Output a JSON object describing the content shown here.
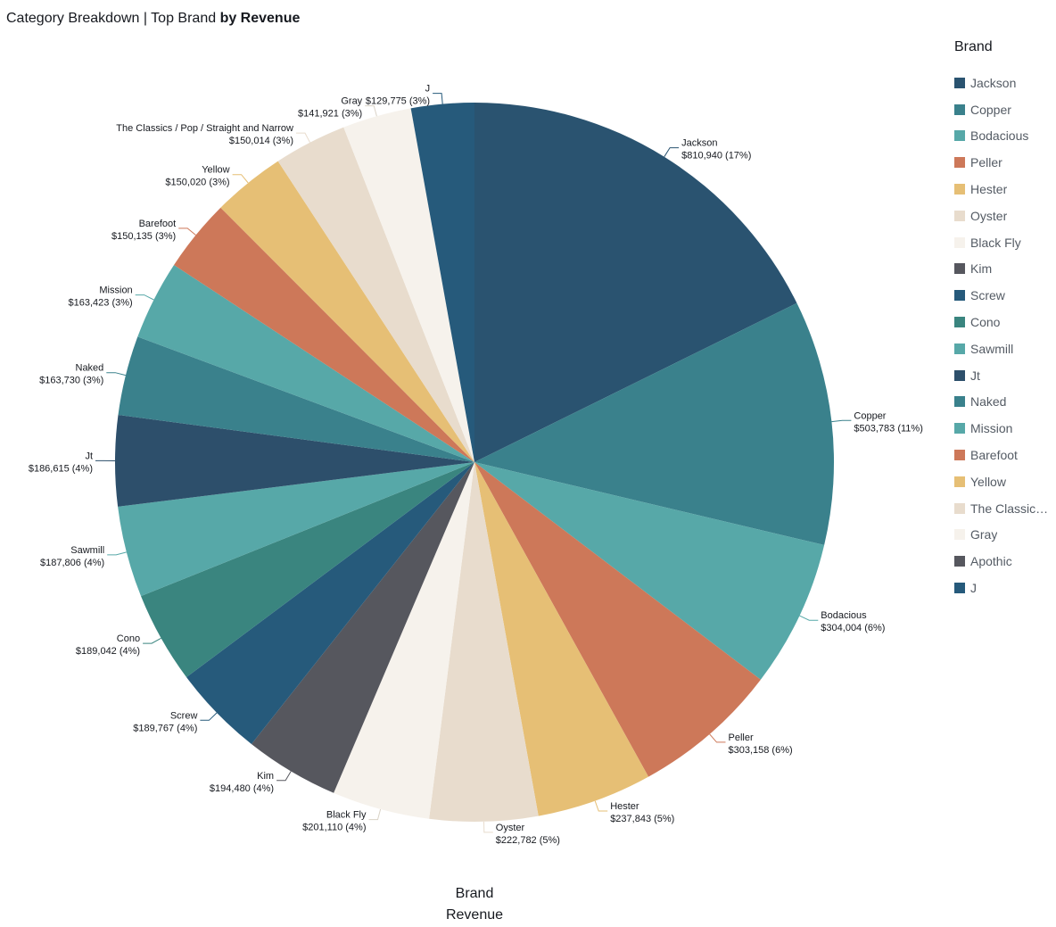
{
  "title": {
    "prefix": "Category Breakdown | Top Brand ",
    "bold": "by Revenue"
  },
  "legend": {
    "title": "Brand"
  },
  "axis_labels": {
    "group": "Brand",
    "value": "Revenue"
  },
  "chart_data": {
    "type": "pie",
    "title": "Category Breakdown | Top Brand by Revenue",
    "group_label": "Brand",
    "value_label": "Revenue",
    "legend_position": "right",
    "slices": [
      {
        "name": "Jackson",
        "legend_name": "Jackson",
        "value": 810940,
        "label": "$810,940 (17%)",
        "color": "#2a5370"
      },
      {
        "name": "Copper",
        "legend_name": "Copper",
        "value": 503783,
        "label": "$503,783 (11%)",
        "color": "#3a818c"
      },
      {
        "name": "Bodacious",
        "legend_name": "Bodacious",
        "value": 304004,
        "label": "$304,004 (6%)",
        "color": "#57a8a8"
      },
      {
        "name": "Peller",
        "legend_name": "Peller",
        "value": 303158,
        "label": "$303,158 (6%)",
        "color": "#cd7859"
      },
      {
        "name": "Hester",
        "legend_name": "Hester",
        "value": 237843,
        "label": "$237,843 (5%)",
        "color": "#e6bf75"
      },
      {
        "name": "Oyster",
        "legend_name": "Oyster",
        "value": 222782,
        "label": "$222,782 (5%)",
        "color": "#e8dccd"
      },
      {
        "name": "Black Fly",
        "legend_name": "Black Fly",
        "value": 201110,
        "label": "$201,110 (4%)",
        "color": "#f6f2ec"
      },
      {
        "name": "Kim",
        "legend_name": "Kim",
        "value": 194480,
        "label": "$194,480 (4%)",
        "color": "#56575e"
      },
      {
        "name": "Screw",
        "legend_name": "Screw",
        "value": 189767,
        "label": "$189,767 (4%)",
        "color": "#265a7b"
      },
      {
        "name": "Cono",
        "legend_name": "Cono",
        "value": 189042,
        "label": "$189,042 (4%)",
        "color": "#3a857f"
      },
      {
        "name": "Sawmill",
        "legend_name": "Sawmill",
        "value": 187806,
        "label": "$187,806 (4%)",
        "color": "#57a8a8"
      },
      {
        "name": "Jt",
        "legend_name": "Jt",
        "value": 186615,
        "label": "$186,615 (4%)",
        "color": "#2d4f6b"
      },
      {
        "name": "Naked",
        "legend_name": "Naked",
        "value": 163730,
        "label": "$163,730 (3%)",
        "color": "#3a818c"
      },
      {
        "name": "Mission",
        "legend_name": "Mission",
        "value": 163423,
        "label": "$163,423 (3%)",
        "color": "#57a8a8"
      },
      {
        "name": "Barefoot",
        "legend_name": "Barefoot",
        "value": 150135,
        "label": "$150,135 (3%)",
        "color": "#cd7859"
      },
      {
        "name": "Yellow",
        "legend_name": "Yellow",
        "value": 150020,
        "label": "$150,020 (3%)",
        "color": "#e6bf75"
      },
      {
        "name": "The Classics / Pop / Straight and Narrow",
        "legend_name": "The Classics…",
        "value": 150014,
        "label": "$150,014 (3%)",
        "color": "#e8dccd"
      },
      {
        "name": "Gray",
        "legend_name": "Gray",
        "value": 141921,
        "label": "$141,921 (3%)",
        "color": "#f6f2ec"
      },
      {
        "name": "Apothic",
        "legend_name": "Apothic",
        "value": 0,
        "label": "",
        "color": "#56575e"
      },
      {
        "name": "J",
        "legend_name": "J",
        "value": 129775,
        "label": "$129,775 (3%)",
        "color": "#265a7b"
      }
    ]
  }
}
